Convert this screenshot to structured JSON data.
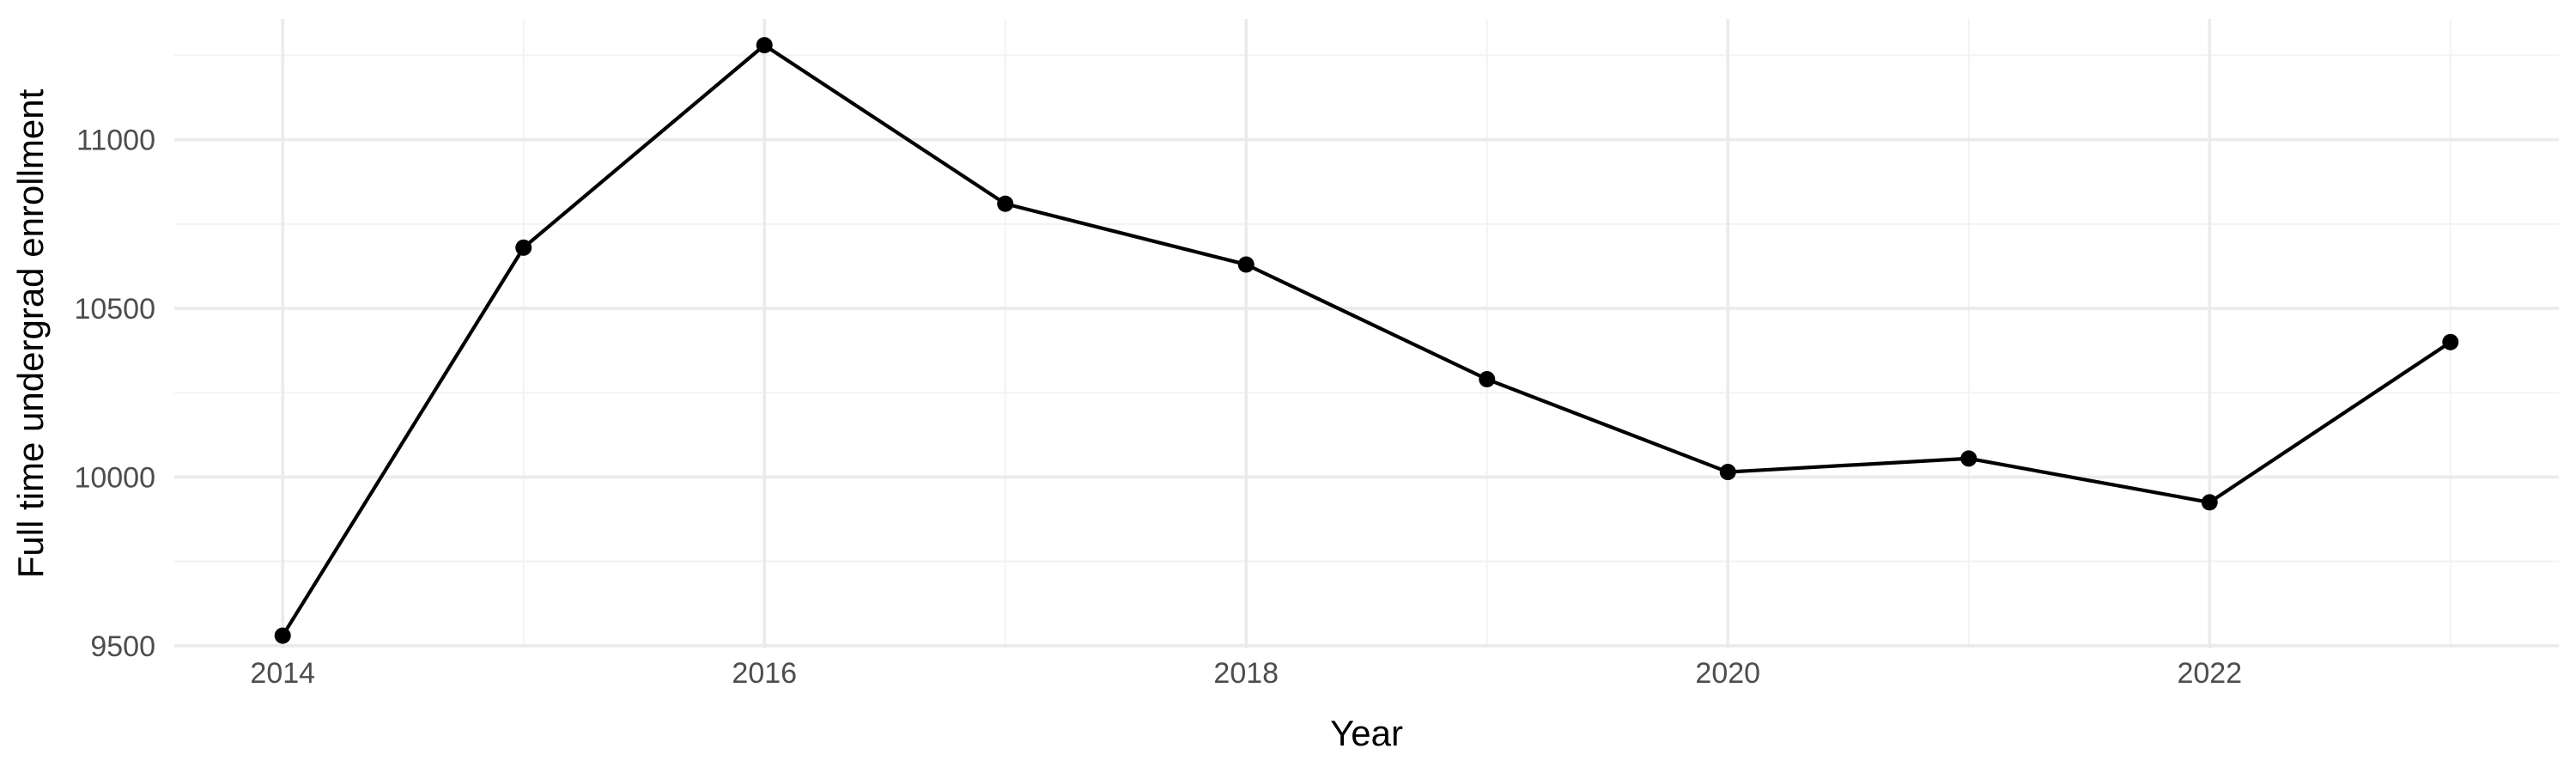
{
  "chart_data": {
    "type": "line",
    "title": "",
    "xlabel": "Year",
    "ylabel": "Full time undergrad enrollment",
    "x": [
      2014,
      2015,
      2016,
      2017,
      2018,
      2019,
      2020,
      2021,
      2022,
      2023
    ],
    "series": [
      {
        "values": [
          9530,
          10680,
          11280,
          10810,
          10630,
          10290,
          10015,
          10055,
          9925,
          10400
        ],
        "color": "#000000"
      }
    ],
    "x_ticks": [
      2014,
      2016,
      2018,
      2020,
      2022
    ],
    "x_tick_labels": [
      "2014",
      "2016",
      "2018",
      "2020",
      "2022"
    ],
    "y_ticks": [
      9500,
      10000,
      10500,
      11000
    ],
    "y_tick_labels": [
      "9500",
      "10000",
      "10500",
      "11000"
    ],
    "xlim": [
      2013.55,
      2023.45
    ],
    "ylim": [
      9492,
      11358
    ],
    "grid": true,
    "legend": "none",
    "colors": {
      "background": "#ffffff",
      "grid_major": "#ebebeb",
      "grid_minor": "#f3f3f3",
      "tick_text": "#4d4d4d",
      "axis_title": "#000000"
    }
  }
}
